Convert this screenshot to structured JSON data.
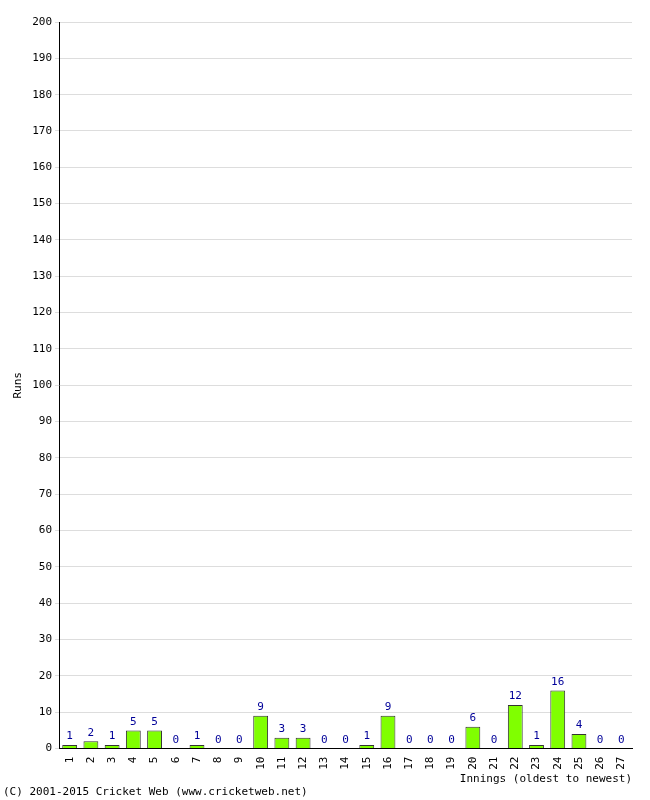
{
  "chart_data": {
    "type": "bar",
    "x_label": "Innings (oldest to newest)",
    "y_label": "Runs",
    "annotations": [
      "(C) 2001-2015 Cricket Web (www.cricketweb.net)"
    ],
    "categories": [
      "1",
      "2",
      "3",
      "4",
      "5",
      "6",
      "7",
      "8",
      "9",
      "10",
      "11",
      "12",
      "13",
      "14",
      "15",
      "16",
      "17",
      "18",
      "19",
      "20",
      "21",
      "22",
      "23",
      "24",
      "25",
      "26",
      "27"
    ],
    "values": [
      1,
      2,
      1,
      5,
      5,
      0,
      1,
      0,
      0,
      9,
      3,
      3,
      0,
      0,
      1,
      9,
      0,
      0,
      0,
      6,
      0,
      12,
      1,
      16,
      4,
      0,
      0
    ],
    "color": "#80ff00",
    "ylim": [
      0,
      200
    ],
    "yticks": [
      0,
      10,
      20,
      30,
      40,
      50,
      60,
      70,
      80,
      90,
      100,
      110,
      120,
      130,
      140,
      150,
      160,
      170,
      180,
      190,
      200
    ],
    "grid": true,
    "data_labels": true
  }
}
